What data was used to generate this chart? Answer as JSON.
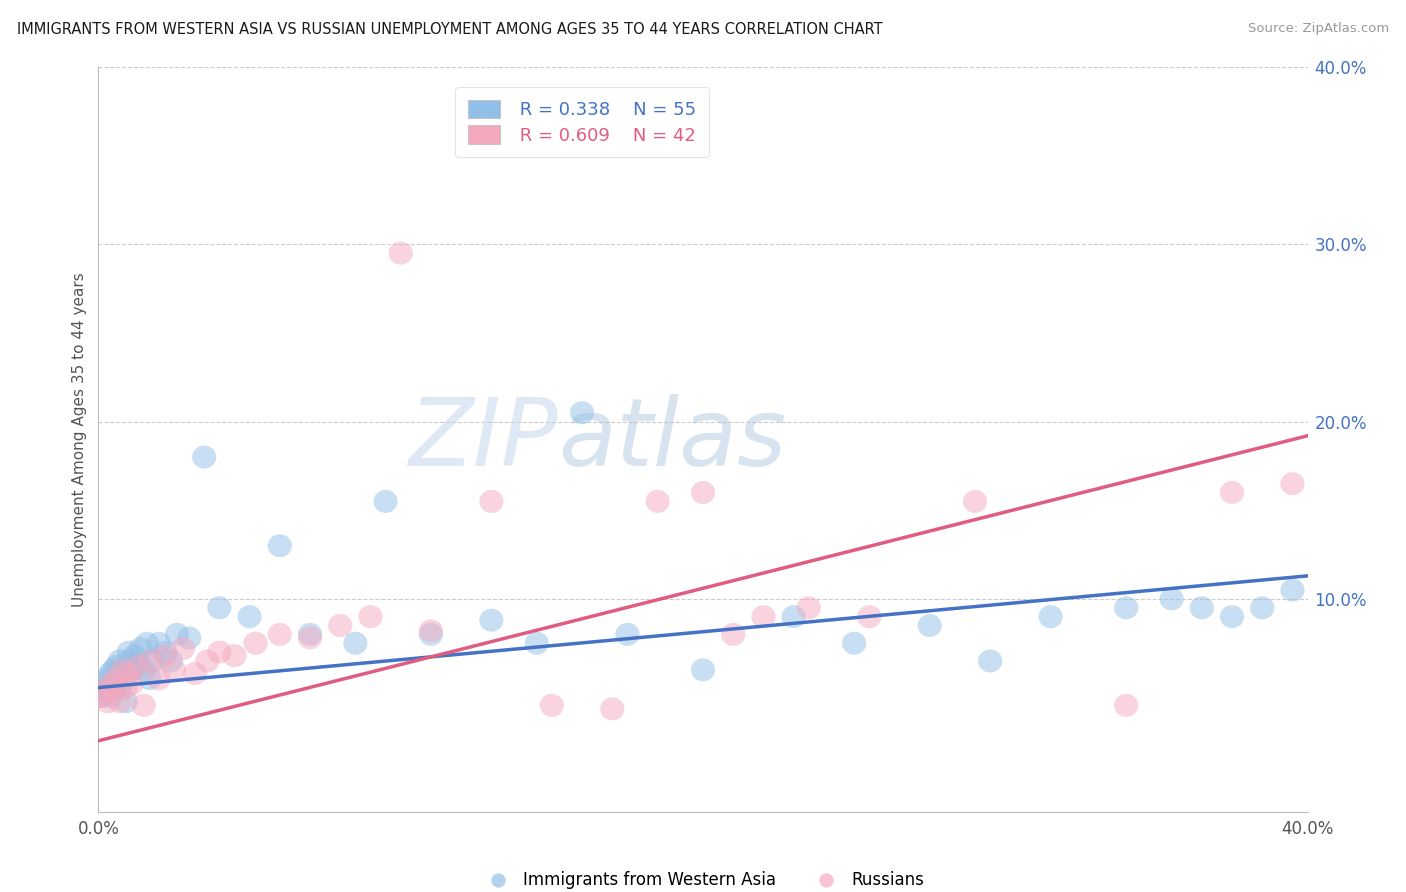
{
  "title": "IMMIGRANTS FROM WESTERN ASIA VS RUSSIAN UNEMPLOYMENT AMONG AGES 35 TO 44 YEARS CORRELATION CHART",
  "source": "Source: ZipAtlas.com",
  "ylabel": "Unemployment Among Ages 35 to 44 years",
  "x_min": 0.0,
  "x_max": 0.4,
  "y_min": -0.02,
  "y_max": 0.4,
  "y_ticks_right": [
    0.1,
    0.2,
    0.3,
    0.4
  ],
  "y_tick_labels_right": [
    "10.0%",
    "20.0%",
    "30.0%",
    "40.0%"
  ],
  "watermark_zip": "ZIP",
  "watermark_atlas": "atlas",
  "legend_R1": "R = 0.338",
  "legend_N1": "N = 55",
  "legend_R2": "R = 0.609",
  "legend_N2": "N = 42",
  "color_blue": "#92bfe8",
  "color_pink": "#f4a8be",
  "color_blue_line": "#4472c4",
  "color_pink_line": "#e05c80",
  "color_title": "#1a1a1a",
  "color_source": "#999999",
  "label_blue": "Immigrants from Western Asia",
  "label_pink": "Russians",
  "blue_x": [
    0.001,
    0.002,
    0.002,
    0.003,
    0.003,
    0.004,
    0.004,
    0.005,
    0.005,
    0.006,
    0.006,
    0.007,
    0.007,
    0.008,
    0.008,
    0.009,
    0.01,
    0.01,
    0.011,
    0.012,
    0.013,
    0.014,
    0.015,
    0.016,
    0.017,
    0.018,
    0.02,
    0.022,
    0.024,
    0.026,
    0.03,
    0.035,
    0.04,
    0.05,
    0.06,
    0.07,
    0.085,
    0.095,
    0.11,
    0.13,
    0.145,
    0.16,
    0.175,
    0.2,
    0.23,
    0.25,
    0.275,
    0.295,
    0.315,
    0.34,
    0.355,
    0.365,
    0.375,
    0.385,
    0.395
  ],
  "blue_y": [
    0.045,
    0.048,
    0.052,
    0.05,
    0.055,
    0.045,
    0.058,
    0.05,
    0.06,
    0.055,
    0.062,
    0.05,
    0.065,
    0.055,
    0.06,
    0.042,
    0.065,
    0.07,
    0.06,
    0.068,
    0.063,
    0.072,
    0.06,
    0.075,
    0.055,
    0.065,
    0.075,
    0.07,
    0.065,
    0.08,
    0.078,
    0.18,
    0.095,
    0.09,
    0.13,
    0.08,
    0.075,
    0.155,
    0.08,
    0.088,
    0.075,
    0.205,
    0.08,
    0.06,
    0.09,
    0.075,
    0.085,
    0.065,
    0.09,
    0.095,
    0.1,
    0.095,
    0.09,
    0.095,
    0.105
  ],
  "pink_x": [
    0.001,
    0.002,
    0.003,
    0.004,
    0.005,
    0.006,
    0.007,
    0.008,
    0.009,
    0.01,
    0.011,
    0.013,
    0.015,
    0.017,
    0.02,
    0.022,
    0.025,
    0.028,
    0.032,
    0.036,
    0.04,
    0.045,
    0.052,
    0.06,
    0.07,
    0.08,
    0.09,
    0.1,
    0.11,
    0.13,
    0.15,
    0.17,
    0.185,
    0.2,
    0.21,
    0.22,
    0.235,
    0.255,
    0.29,
    0.34,
    0.375,
    0.395
  ],
  "pink_y": [
    0.045,
    0.048,
    0.042,
    0.052,
    0.048,
    0.055,
    0.042,
    0.06,
    0.05,
    0.058,
    0.052,
    0.062,
    0.04,
    0.065,
    0.055,
    0.068,
    0.06,
    0.072,
    0.058,
    0.065,
    0.07,
    0.068,
    0.075,
    0.08,
    0.078,
    0.085,
    0.09,
    0.295,
    0.082,
    0.155,
    0.04,
    0.038,
    0.155,
    0.16,
    0.08,
    0.09,
    0.095,
    0.09,
    0.155,
    0.04,
    0.16,
    0.165
  ]
}
